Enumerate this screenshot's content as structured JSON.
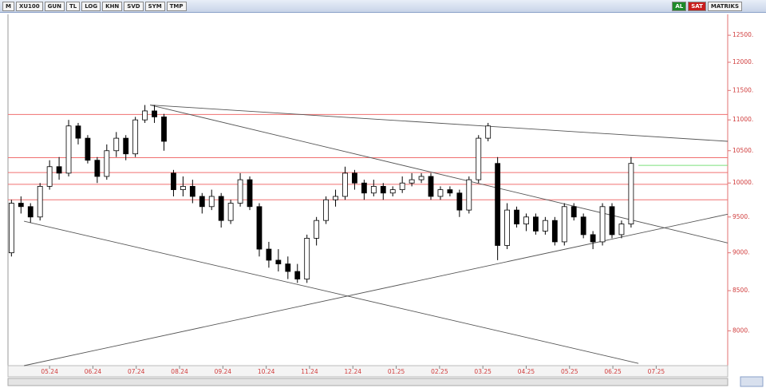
{
  "toolbar": {
    "left": [
      "M",
      "XU100",
      "GUN",
      "TL",
      "LOG",
      "KHN",
      "SVD",
      "SYM",
      "TMP"
    ],
    "right": [
      "AL",
      "SAT",
      "MATRIKS"
    ]
  },
  "chart_data": {
    "type": "candlestick",
    "log": true,
    "xlim": [
      -0.96,
      15.65
    ],
    "ylim": [
      7590,
      12900
    ],
    "yticks": [
      {
        "value": 8000,
        "label": "8000."
      },
      {
        "value": 8500,
        "label": "8500."
      },
      {
        "value": 9000,
        "label": "9000."
      },
      {
        "value": 9500,
        "label": "9500."
      },
      {
        "value": 10000,
        "label": "10000."
      },
      {
        "value": 10500,
        "label": "10500."
      },
      {
        "value": 11000,
        "label": "11000."
      },
      {
        "value": 11500,
        "label": "11500."
      },
      {
        "value": 12000,
        "label": "12000."
      },
      {
        "value": 12500,
        "label": "12500."
      }
    ],
    "xticks": [
      {
        "value": 0,
        "label": "05.24"
      },
      {
        "value": 1,
        "label": "06.24"
      },
      {
        "value": 2,
        "label": "07.24"
      },
      {
        "value": 3,
        "label": "08.24"
      },
      {
        "value": 4,
        "label": "09.24"
      },
      {
        "value": 5,
        "label": "10.24"
      },
      {
        "value": 6,
        "label": "11.24"
      },
      {
        "value": 7,
        "label": "12.24"
      },
      {
        "value": 8,
        "label": "01.25"
      },
      {
        "value": 9,
        "label": "02.25"
      },
      {
        "value": 10,
        "label": "03.25"
      },
      {
        "value": 11,
        "label": "04.25"
      },
      {
        "value": 12,
        "label": "05.25"
      },
      {
        "value": 13,
        "label": "06.25"
      },
      {
        "value": 14,
        "label": "07.25"
      }
    ],
    "up_color": "#ffffff",
    "down_color": "#000000",
    "x": [
      -0.88,
      -0.66,
      -0.44,
      -0.22,
      0.0,
      0.22,
      0.44,
      0.66,
      0.88,
      1.1,
      1.32,
      1.54,
      1.76,
      1.98,
      2.2,
      2.42,
      2.64,
      2.86,
      3.08,
      3.3,
      3.52,
      3.74,
      3.96,
      4.18,
      4.4,
      4.62,
      4.84,
      5.06,
      5.28,
      5.5,
      5.72,
      5.94,
      6.16,
      6.38,
      6.6,
      6.82,
      7.04,
      7.26,
      7.48,
      7.7,
      7.92,
      8.14,
      8.36,
      8.58,
      8.8,
      9.02,
      9.24,
      9.46,
      9.68,
      9.9,
      10.12,
      10.34,
      10.56,
      10.78,
      11.0,
      11.22,
      11.44,
      11.66,
      11.88,
      12.1,
      12.32,
      12.54,
      12.76,
      12.98,
      13.2,
      13.42
    ],
    "open": [
      9000,
      9700,
      9650,
      9500,
      9950,
      10250,
      10150,
      10900,
      10700,
      10350,
      10100,
      10500,
      10700,
      10450,
      11000,
      11150,
      11050,
      10150,
      9900,
      9950,
      9800,
      9650,
      9800,
      9450,
      9700,
      10050,
      9650,
      9050,
      8900,
      8850,
      8750,
      8650,
      9200,
      9450,
      9750,
      9800,
      10150,
      10000,
      9850,
      9950,
      9850,
      9900,
      10000,
      10050,
      10100,
      9800,
      9900,
      9850,
      9600,
      10050,
      10700,
      10300,
      9100,
      9600,
      9400,
      9500,
      9300,
      9450,
      9150,
      9650,
      9500,
      9250,
      9150,
      9650,
      9250,
      9400
    ],
    "high": [
      9750,
      9800,
      9700,
      10000,
      10350,
      10400,
      11000,
      10950,
      10750,
      10400,
      10600,
      10800,
      10750,
      11050,
      11250,
      11250,
      11100,
      10200,
      10100,
      10050,
      9850,
      9900,
      9850,
      9750,
      10150,
      10100,
      9700,
      9150,
      9050,
      8950,
      8850,
      9250,
      9500,
      9800,
      9900,
      10250,
      10200,
      10050,
      10050,
      10000,
      9950,
      10100,
      10150,
      10150,
      10150,
      9950,
      9950,
      9900,
      10100,
      10750,
      10950,
      10400,
      9700,
      9650,
      9550,
      9550,
      9500,
      9500,
      9700,
      9700,
      9550,
      9300,
      9700,
      9700,
      9450,
      10400
    ],
    "low": [
      8950,
      9550,
      9420,
      9450,
      9900,
      10050,
      10100,
      10600,
      10300,
      10000,
      10050,
      10400,
      10350,
      10400,
      10950,
      10950,
      10500,
      9800,
      9800,
      9700,
      9550,
      9600,
      9350,
      9400,
      9650,
      9600,
      8950,
      8800,
      8750,
      8650,
      8600,
      8600,
      9100,
      9400,
      9650,
      9750,
      9900,
      9750,
      9800,
      9750,
      9800,
      9850,
      9950,
      10000,
      9750,
      9750,
      9800,
      9500,
      9550,
      10000,
      10650,
      8900,
      9050,
      9350,
      9300,
      9250,
      9250,
      9100,
      9100,
      9450,
      9200,
      9050,
      9100,
      9200,
      9200,
      9350
    ],
    "close": [
      9700,
      9650,
      9500,
      9950,
      10250,
      10150,
      10900,
      10700,
      10350,
      10100,
      10500,
      10700,
      10450,
      11000,
      11150,
      11050,
      10650,
      9900,
      9950,
      9800,
      9650,
      9800,
      9450,
      9700,
      10050,
      9650,
      9050,
      8900,
      8850,
      8750,
      8650,
      9200,
      9450,
      9750,
      9800,
      10150,
      10000,
      9850,
      9950,
      9850,
      9900,
      10000,
      10050,
      10100,
      9800,
      9900,
      9850,
      9600,
      10050,
      10700,
      10900,
      9100,
      9600,
      9400,
      9500,
      9300,
      9450,
      9150,
      9650,
      9500,
      9250,
      9150,
      9650,
      9250,
      9400,
      10300
    ],
    "hlines": [
      {
        "value": 11090,
        "color": "#f07070"
      },
      {
        "value": 10390,
        "color": "#f07070"
      },
      {
        "value": 10160,
        "color": "#f07070"
      },
      {
        "value": 9980,
        "color": "#f07070"
      },
      {
        "value": 9750,
        "color": "#f07070"
      },
      {
        "value": 10270,
        "color": "#7be07b",
        "x": [
          13.59,
          15.65
        ]
      }
    ],
    "trendlines": [
      {
        "x": [
          2.32,
          15.65
        ],
        "y": [
          11250,
          10650
        ],
        "color": "#555555"
      },
      {
        "x": [
          2.32,
          15.65
        ],
        "y": [
          11250,
          9135
        ],
        "color": "#555555"
      },
      {
        "x": [
          -0.59,
          13.59
        ],
        "y": [
          9440,
          7616
        ],
        "color": "#555555"
      },
      {
        "x": [
          -0.59,
          15.65
        ],
        "y": [
          7590,
          9540
        ],
        "color": "#555555"
      }
    ]
  }
}
